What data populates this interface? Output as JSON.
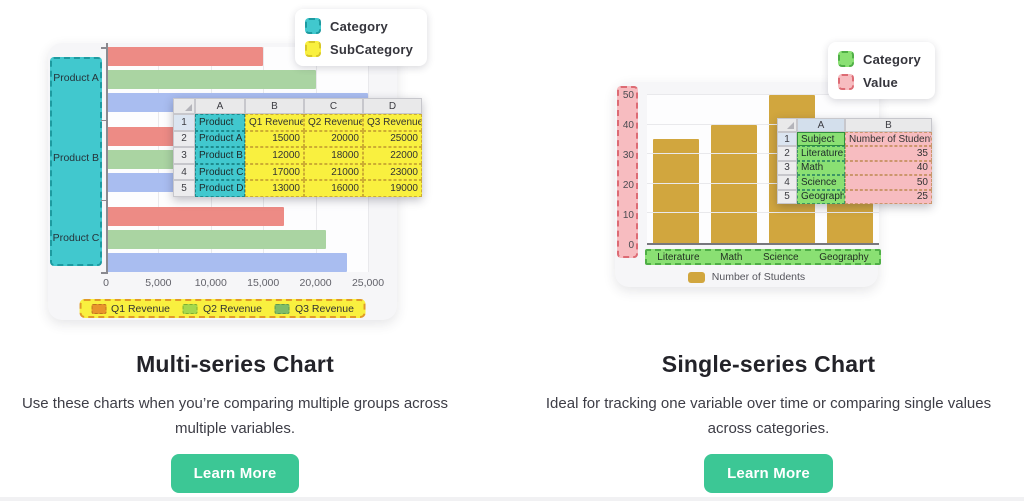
{
  "sections": {
    "left": {
      "title": "Multi-series Chart",
      "description": "Use these charts when you’re comparing multiple groups across multiple variables.",
      "button_label": "Learn More"
    },
    "right": {
      "title": "Single-series Chart",
      "description": "Ideal for tracking one variable over time or comparing single values across categories.",
      "button_label": "Learn More"
    }
  },
  "colors": {
    "accent_button": "#3cc795",
    "category_teal": "#41c8ce",
    "subcategory_yellow": "#f9f03f",
    "category_green": "#8ae073",
    "value_pink": "#f7bcc0",
    "bar_red": "#ed8b85",
    "bar_green": "#aad4a2",
    "bar_blue": "#a9bdf0",
    "bar_gold": "#d1a63e"
  },
  "chart_data": [
    {
      "type": "bar",
      "orientation": "horizontal",
      "title": "",
      "categories": [
        "Product A",
        "Product B",
        "Product C"
      ],
      "series": [
        {
          "name": "Q1 Revenue",
          "color": "#ed8b85",
          "values": [
            15000,
            12000,
            17000
          ]
        },
        {
          "name": "Q2 Revenue",
          "color": "#aad4a2",
          "values": [
            20000,
            18000,
            21000
          ]
        },
        {
          "name": "Q3 Revenue",
          "color": "#a9bdf0",
          "values": [
            25000,
            22000,
            23000
          ]
        }
      ],
      "xlim": [
        0,
        25000
      ],
      "x_tick_labels": [
        "0",
        "5,000",
        "10,000",
        "15,000",
        "20,000",
        "25,000"
      ],
      "grid": true,
      "legend_position": "bottom",
      "legend": [
        {
          "label": "Q1 Revenue",
          "color": "#e8942c",
          "border": "#bd751f"
        },
        {
          "label": "Q2 Revenue",
          "color": "#a5d84d",
          "border": "#7fae2f"
        },
        {
          "label": "Q3 Revenue",
          "color": "#7fbc69",
          "border": "#5f994d"
        }
      ]
    },
    {
      "type": "bar",
      "orientation": "vertical",
      "title": "",
      "categories": [
        "Literature",
        "Math",
        "Science",
        "Geography"
      ],
      "series": [
        {
          "name": "Number of Students",
          "color": "#d1a63e",
          "values": [
            35,
            40,
            50,
            25
          ]
        }
      ],
      "ylim": [
        0,
        50
      ],
      "y_tick_labels": [
        "0",
        "10",
        "20",
        "30",
        "40",
        "50"
      ],
      "grid": true,
      "legend_position": "bottom",
      "legend": [
        {
          "label": "Number of Students",
          "color": "#d1a63e",
          "border": "#d1a63e"
        }
      ]
    }
  ],
  "left_overlay": {
    "float_legend": [
      {
        "label": "Category",
        "color": "#41c8ce",
        "border": "#1d9aa0"
      },
      {
        "label": "SubCategory",
        "color": "#f9f03f",
        "border": "#d8c728"
      }
    ],
    "spreadsheet": {
      "col_headers": [
        "A",
        "B",
        "C",
        "D"
      ],
      "key_color": "#41c8ce",
      "value_color": "#f9f03f",
      "rows": [
        [
          "1",
          "Product",
          "Q1 Revenue",
          "Q2 Revenue",
          "Q3 Revenue"
        ],
        [
          "2",
          "Product A",
          "15000",
          "20000",
          "25000"
        ],
        [
          "3",
          "Product B",
          "12000",
          "18000",
          "22000"
        ],
        [
          "4",
          "Product C",
          "17000",
          "21000",
          "23000"
        ],
        [
          "5",
          "Product D",
          "13000",
          "16000",
          "19000"
        ]
      ]
    }
  },
  "right_overlay": {
    "float_legend": [
      {
        "label": "Category",
        "color": "#8ae073",
        "border": "#4fae46"
      },
      {
        "label": "Value",
        "color": "#f7bcc0",
        "border": "#dd6b74"
      }
    ],
    "spreadsheet": {
      "col_headers": [
        "A",
        "B"
      ],
      "key_color": "#8ae073",
      "value_color": "#f7bcc0",
      "rows": [
        [
          "1",
          "Subject",
          "Number of Students"
        ],
        [
          "2",
          "Literature",
          "35"
        ],
        [
          "3",
          "Math",
          "40"
        ],
        [
          "4",
          "Science",
          "50"
        ],
        [
          "5",
          "Geography",
          "25"
        ]
      ]
    }
  }
}
